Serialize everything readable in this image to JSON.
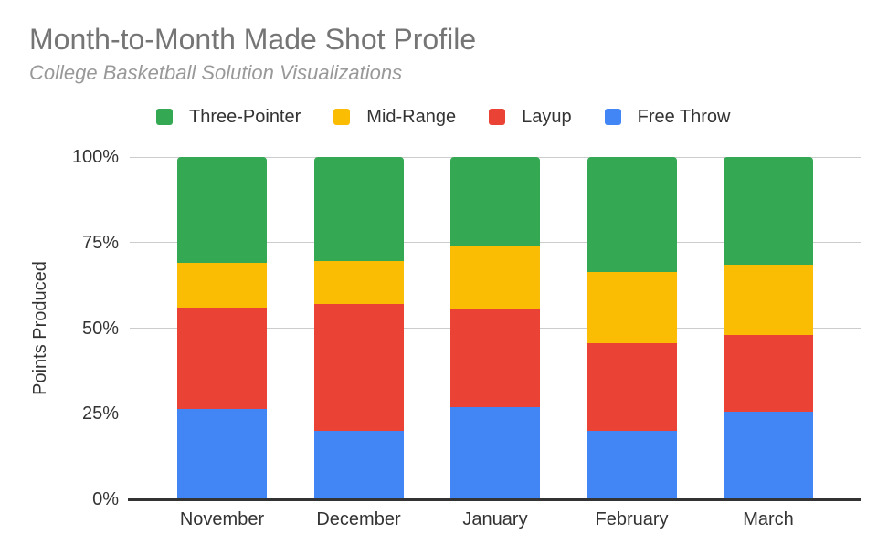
{
  "chart_data": {
    "type": "bar",
    "variant": "stacked-100-percent-column",
    "title": "Month-to-Month Made Shot Profile",
    "subtitle": "College Basketball Solution Visualizations",
    "ylabel": "Points Produced",
    "xlabel": "",
    "categories": [
      "November",
      "December",
      "January",
      "February",
      "March"
    ],
    "series": [
      {
        "name": "Free Throw",
        "color": "#4285F4",
        "values": [
          26.5,
          20.0,
          27.0,
          20.0,
          25.5
        ]
      },
      {
        "name": "Layup",
        "color": "#EA4335",
        "values": [
          29.5,
          37.0,
          28.5,
          25.5,
          22.5
        ]
      },
      {
        "name": "Mid-Range",
        "color": "#FBBC04",
        "values": [
          13.0,
          12.5,
          18.5,
          21.0,
          20.5
        ]
      },
      {
        "name": "Three-Pointer",
        "color": "#34A853",
        "values": [
          31.0,
          30.5,
          26.0,
          33.5,
          31.5
        ]
      }
    ],
    "legend": [
      {
        "name": "Three-Pointer",
        "color": "#34A853"
      },
      {
        "name": "Mid-Range",
        "color": "#FBBC04"
      },
      {
        "name": "Layup",
        "color": "#EA4335"
      },
      {
        "name": "Free Throw",
        "color": "#4285F4"
      }
    ],
    "legend_position": "top",
    "y_ticks": [
      "0%",
      "25%",
      "50%",
      "75%",
      "100%"
    ],
    "ylim": [
      0,
      100
    ],
    "grid": true,
    "colors": {
      "title_text": "#757575",
      "subtitle_text": "#999999",
      "axis_text": "#333333",
      "gridline": "#CCCCCC",
      "baseline": "#333333",
      "background": "#FFFFFF"
    }
  }
}
